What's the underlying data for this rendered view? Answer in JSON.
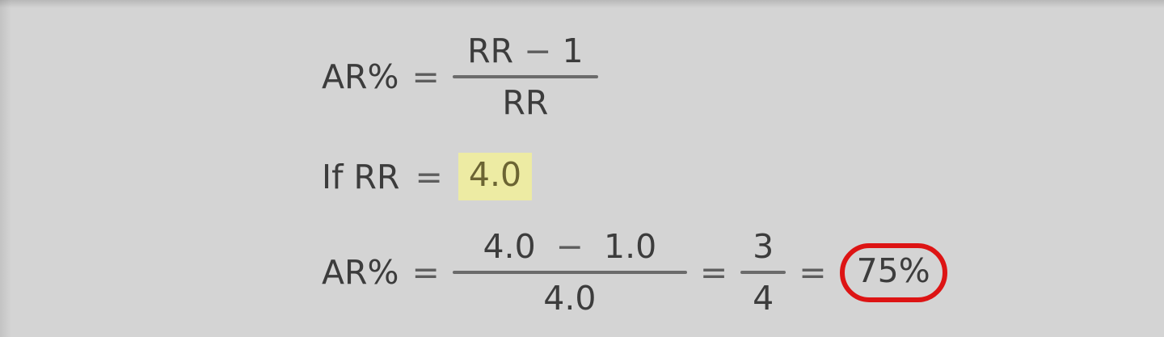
{
  "colors": {
    "background": "#d4d4d4",
    "text": "#3c3c3c",
    "operator": "#5d5d5d",
    "fraction_bar": "#6b6b6b",
    "highlight_background": "#edeba3",
    "highlight_text": "#6b6433",
    "result_circle": "#dd1414"
  },
  "formula_definition": {
    "lhs": "AR%",
    "equals": "=",
    "numerator_left": "RR",
    "numerator_operator": "−",
    "numerator_right": "1",
    "denominator": "RR"
  },
  "condition": {
    "prefix": "If RR",
    "equals": "=",
    "value": "4.0"
  },
  "calculation": {
    "lhs": "AR%",
    "equals": "=",
    "numerator_left": "4.0",
    "numerator_operator": "−",
    "numerator_right": "1.0",
    "denominator": "4.0",
    "equals_2": "=",
    "fraction_numerator": "3",
    "fraction_denominator": "4",
    "equals_3": "=",
    "result": "75%"
  }
}
